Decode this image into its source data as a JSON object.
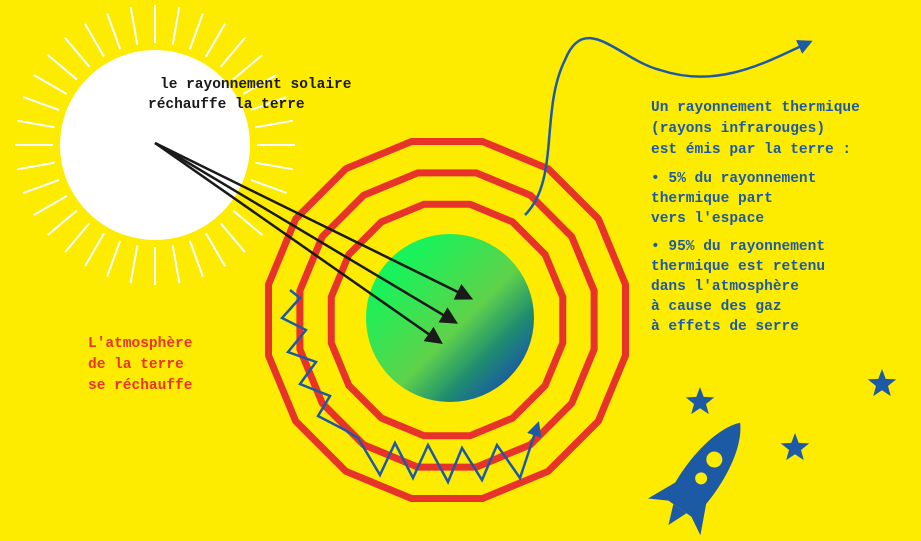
{
  "sun_label": [
    "le rayonnement solaire",
    "réchauffe la terre"
  ],
  "atmosphere_label": [
    "L'atmosphère",
    "de la terre",
    "se réchauffe"
  ],
  "thermal": {
    "intro": [
      "Un rayonnement thermique",
      "(rayons infrarouges)",
      "est émis par la terre :"
    ],
    "bullets": [
      [
        "• 5% du rayonnement",
        "thermique part",
        "vers l'espace"
      ],
      [
        "• 95% du rayonnement",
        "thermique est retenu",
        "dans l'atmosphère",
        "à cause des gaz",
        "à effets de serre"
      ]
    ]
  }
}
